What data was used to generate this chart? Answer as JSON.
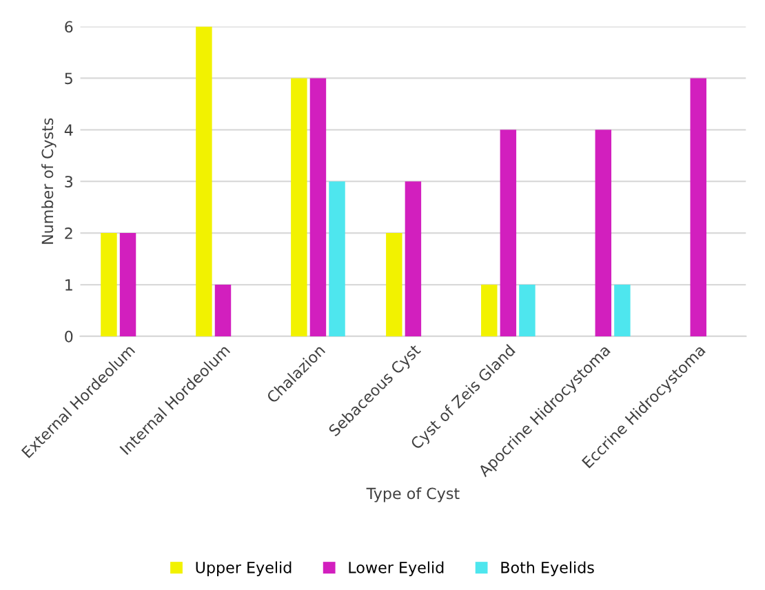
{
  "chart_data": {
    "type": "bar",
    "xlabel": "Type of Cyst",
    "ylabel": "Number of Cysts",
    "categories": [
      "External Hordeolum",
      "Internal Hordeolum",
      "Chalazion",
      "Sebaceous Cyst",
      "Cyst of Zeis Gland",
      "Apocrine Hidrocystoma",
      "Eccrine Hidrocystoma"
    ],
    "series": [
      {
        "name": "Upper Eyelid",
        "color": "#f2f200",
        "values": [
          2,
          6,
          5,
          2,
          1,
          0,
          0
        ]
      },
      {
        "name": "Lower Eyelid",
        "color": "#d21fbe",
        "values": [
          2,
          1,
          5,
          3,
          4,
          4,
          5
        ]
      },
      {
        "name": "Both Eyelids",
        "color": "#4ee6ee",
        "values": [
          0,
          0,
          3,
          0,
          1,
          1,
          0
        ]
      }
    ],
    "ylim": [
      0,
      6
    ],
    "yticks": [
      0,
      1,
      2,
      3,
      4,
      5,
      6
    ],
    "grid": "y",
    "legend": "bottom"
  }
}
